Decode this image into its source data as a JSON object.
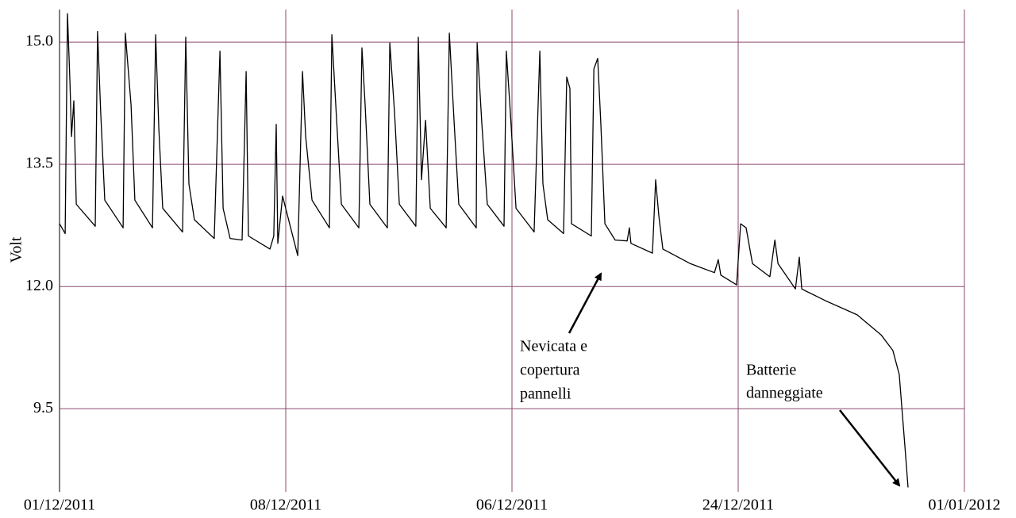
{
  "chart_data": {
    "type": "line",
    "y_label": "Volt",
    "xlim": [
      0,
      4
    ],
    "xticks": [
      {
        "value": 0,
        "label": "01/12/2011"
      },
      {
        "value": 1,
        "label": "08/12/2011"
      },
      {
        "value": 2,
        "label": "06/12/2011"
      },
      {
        "value": 3,
        "label": "24/12/2011"
      },
      {
        "value": 4,
        "label": "01/01/2012"
      }
    ],
    "ylim": [
      7.8,
      15.4
    ],
    "yticks": [
      {
        "value": 9.5,
        "label": "9.5"
      },
      {
        "value": 12,
        "label": "12.0"
      },
      {
        "value": 13.5,
        "label": "13.5"
      },
      {
        "value": 15,
        "label": "15.0"
      }
    ],
    "grid": true,
    "grid_color": "#8c4a6e",
    "series": [
      {
        "color": "#000000",
        "x": [
          0,
          0.025,
          0.035,
          0.046,
          0.053,
          0.063,
          0.074,
          0.158,
          0.168,
          0.182,
          0.2,
          0.281,
          0.291,
          0.316,
          0.333,
          0.411,
          0.425,
          0.439,
          0.456,
          0.544,
          0.558,
          0.572,
          0.596,
          0.684,
          0.709,
          0.723,
          0.754,
          0.807,
          0.825,
          0.835,
          0.93,
          0.947,
          0.958,
          0.965,
          0.986,
          1.053,
          1.074,
          1.088,
          1.116,
          1.193,
          1.204,
          1.225,
          1.246,
          1.323,
          1.337,
          1.351,
          1.372,
          1.449,
          1.46,
          1.481,
          1.502,
          1.575,
          1.586,
          1.6,
          1.618,
          1.639,
          1.709,
          1.723,
          1.744,
          1.765,
          1.842,
          1.846,
          1.867,
          1.891,
          1.965,
          1.975,
          1.993,
          2.018,
          2.098,
          2.123,
          2.137,
          2.158,
          2.228,
          2.242,
          2.256,
          2.263,
          2.351,
          2.362,
          2.379,
          2.393,
          2.411,
          2.456,
          2.509,
          2.519,
          2.526,
          2.621,
          2.635,
          2.649,
          2.667,
          2.789,
          2.895,
          2.912,
          2.923,
          2.993,
          3.011,
          3.035,
          3.063,
          3.14,
          3.162,
          3.176,
          3.253,
          3.27,
          3.281,
          3.386,
          3.526,
          3.632,
          3.684,
          3.712,
          3.737,
          3.751
        ],
        "values": [
          12.77,
          12.65,
          15.35,
          14.52,
          13.84,
          14.28,
          13.01,
          12.74,
          15.13,
          14.13,
          13.06,
          12.72,
          15.11,
          14.23,
          13.06,
          12.72,
          15.09,
          13.94,
          12.96,
          12.67,
          15.06,
          13.26,
          12.82,
          12.59,
          14.89,
          12.96,
          12.59,
          12.57,
          14.64,
          12.62,
          12.46,
          12.62,
          13.99,
          12.53,
          13.11,
          12.38,
          14.64,
          13.84,
          13.06,
          12.72,
          15.09,
          14.04,
          13.01,
          12.72,
          14.93,
          14.23,
          13.01,
          12.72,
          14.99,
          14.13,
          13.01,
          12.74,
          15.06,
          13.31,
          14.04,
          12.96,
          12.72,
          15.11,
          14.04,
          13.01,
          12.72,
          14.99,
          13.99,
          13.01,
          12.74,
          14.89,
          14.13,
          12.96,
          12.67,
          14.89,
          13.26,
          12.82,
          12.65,
          14.57,
          14.43,
          12.77,
          12.62,
          14.67,
          14.8,
          13.99,
          12.77,
          12.57,
          12.56,
          12.72,
          12.53,
          12.41,
          13.31,
          12.87,
          12.46,
          12.28,
          12.17,
          12.33,
          12.14,
          12.02,
          12.77,
          12.72,
          12.28,
          12.12,
          12.57,
          12.28,
          11.95,
          12.36,
          11.95,
          11.71,
          11.42,
          11.01,
          10.69,
          10.2,
          8.74,
          7.89
        ]
      }
    ],
    "annotations": [
      {
        "text": [
          "Nevicata e",
          "copertura",
          "pannelli"
        ]
      },
      {
        "text": [
          "Batterie",
          "danneggiate"
        ]
      }
    ]
  }
}
